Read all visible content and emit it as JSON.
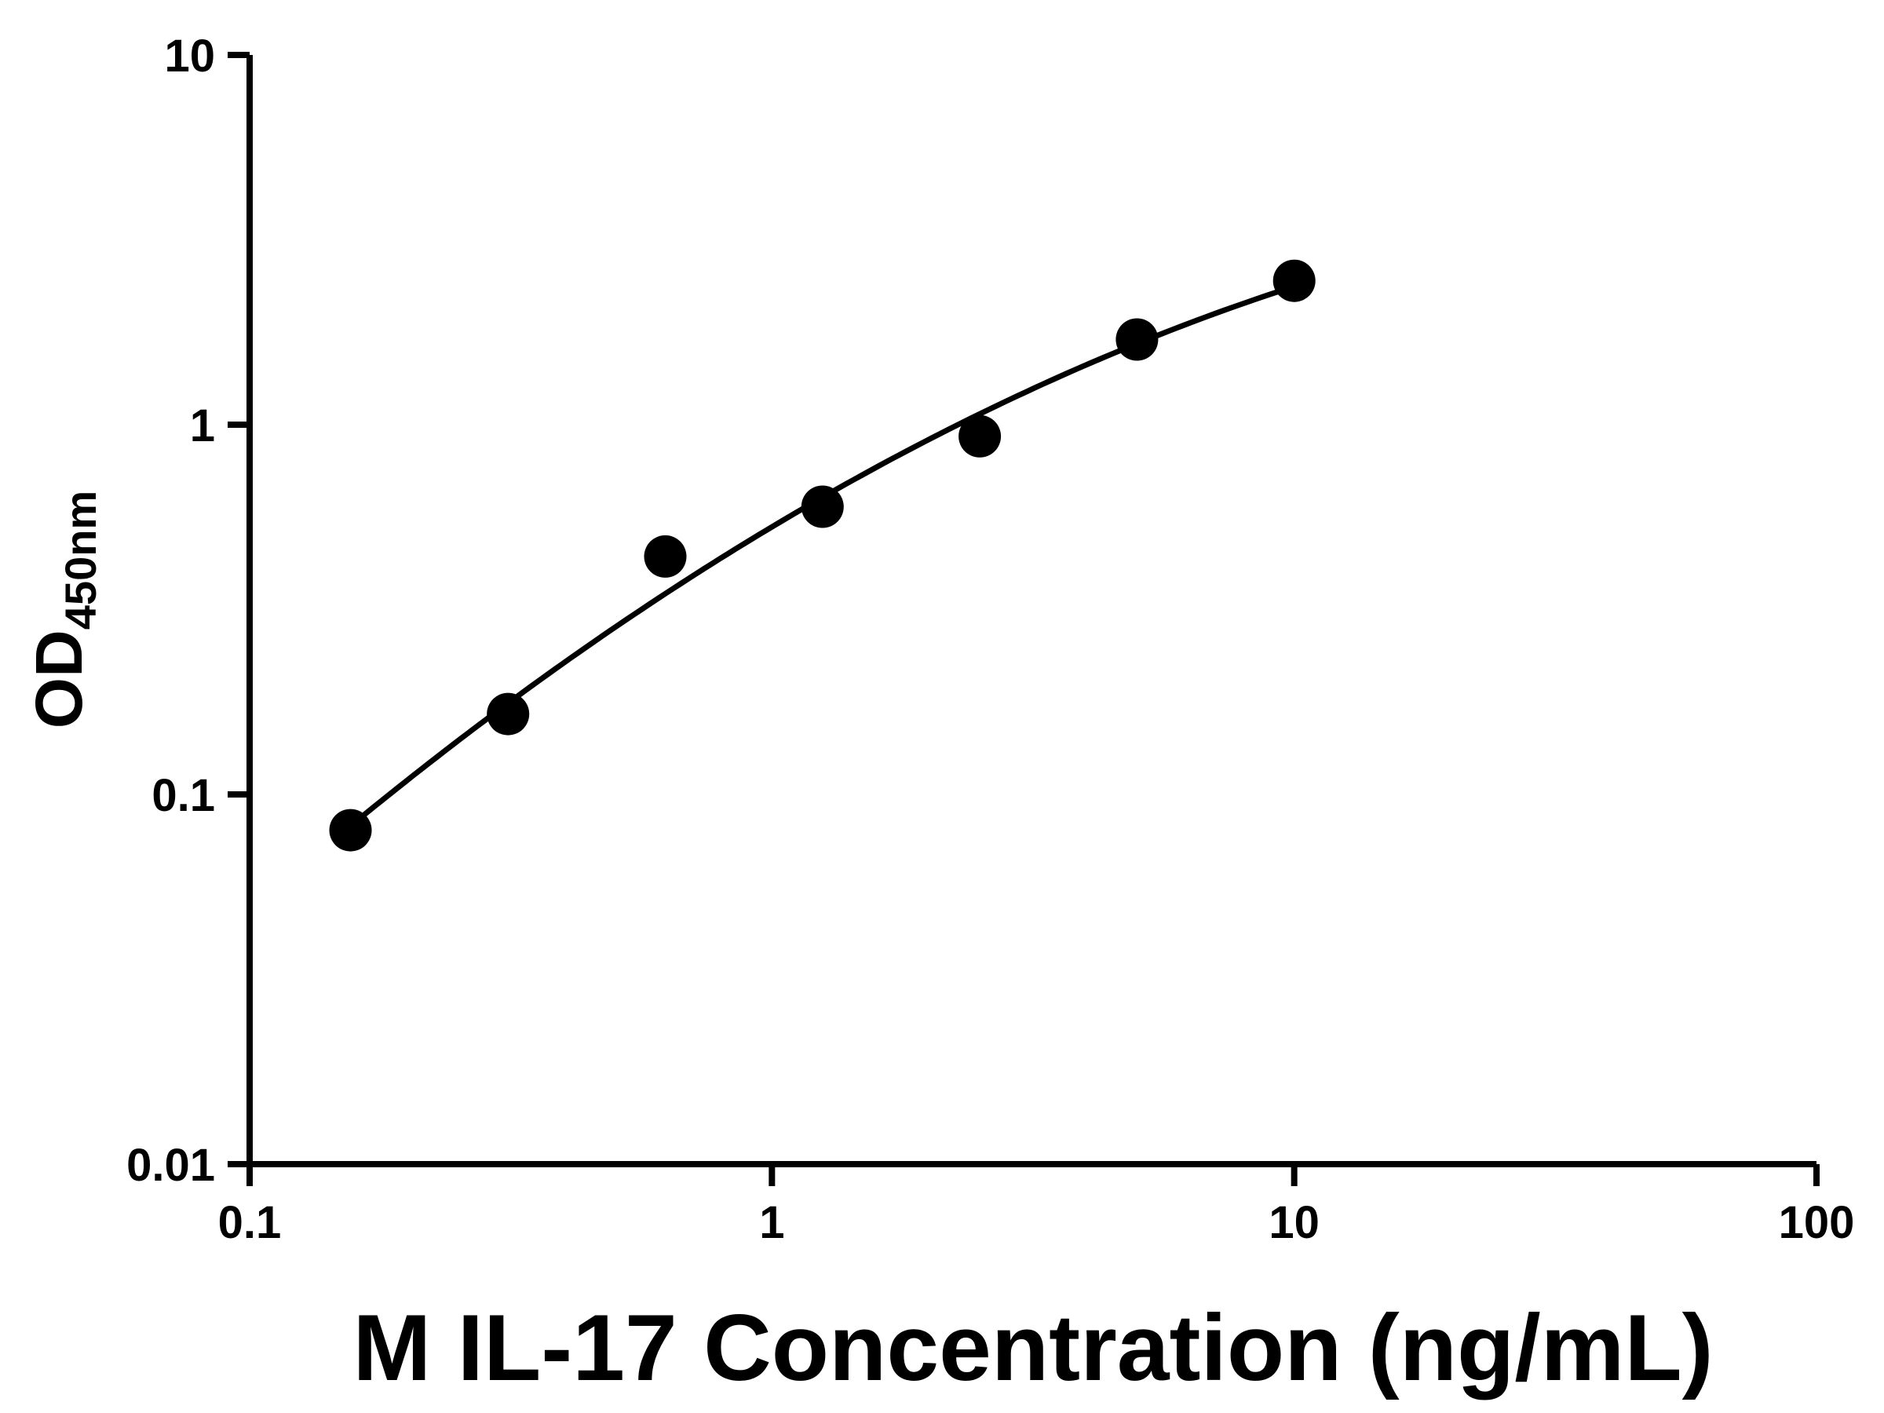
{
  "figure": {
    "background": "#ffffff",
    "foreground": "#000000"
  },
  "chart_data": {
    "type": "scatter",
    "title": "",
    "xlabel": "M IL-17 Concentration (ng/mL)",
    "ylabel_main": "OD",
    "ylabel_sub": "450nm",
    "xscale": "log",
    "yscale": "log",
    "xlim": [
      0.1,
      100
    ],
    "ylim": [
      0.01,
      10
    ],
    "x_ticks": [
      0.1,
      1,
      10,
      100
    ],
    "x_tick_labels": [
      "0.1",
      "1",
      "10",
      "100"
    ],
    "y_ticks": [
      0.01,
      0.1,
      1,
      10
    ],
    "y_tick_labels": [
      "0.01",
      "0.1",
      "1",
      "10"
    ],
    "grid": false,
    "legend": false,
    "marker": "circle",
    "marker_color": "#000000",
    "curve_color": "#000000",
    "x": [
      0.156,
      0.3125,
      0.625,
      1.25,
      2.5,
      5,
      10
    ],
    "y": [
      0.08,
      0.165,
      0.44,
      0.6,
      0.93,
      1.7,
      2.45
    ],
    "fit_curve": {
      "present": true,
      "x_start": 0.156,
      "x_end": 10
    }
  }
}
